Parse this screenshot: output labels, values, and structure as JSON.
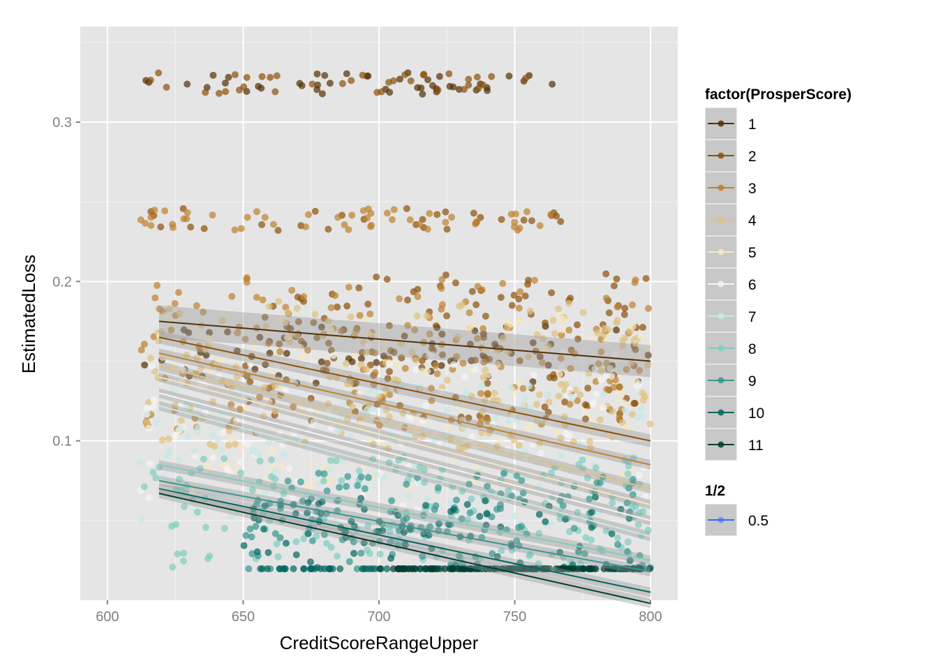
{
  "chart_data": {
    "type": "scatter",
    "xlabel": "CreditScoreRangeUpper",
    "ylabel": "EstimatedLoss",
    "xlim": [
      590,
      810
    ],
    "ylim": [
      0.0,
      0.36
    ],
    "x_ticks": [
      600,
      650,
      700,
      750,
      800
    ],
    "x_tick_labels": [
      "600",
      "650",
      "700",
      "750",
      "800"
    ],
    "y_ticks": [
      0.1,
      0.2,
      0.3
    ],
    "y_tick_labels": [
      "0.1",
      "0.2",
      "0.3"
    ],
    "grid": true,
    "legend_position": "right",
    "colors": {
      "panel_bg": "#e5e5e5",
      "grid_major": "#ffffff",
      "grid_minor": "#f2f2f2",
      "smooth_ribbon": "#999999",
      "legend_key_bg": "#c8c8c8"
    },
    "legends": [
      {
        "title": "factor(ProsperScore)",
        "entries": [
          {
            "label": "1",
            "color": "#543005"
          },
          {
            "label": "2",
            "color": "#8c510a"
          },
          {
            "label": "3",
            "color": "#bf812d"
          },
          {
            "label": "4",
            "color": "#dfc27d"
          },
          {
            "label": "5",
            "color": "#f6e8c3"
          },
          {
            "label": "6",
            "color": "#f5f5f5"
          },
          {
            "label": "7",
            "color": "#c7eae5"
          },
          {
            "label": "8",
            "color": "#80cdc1"
          },
          {
            "label": "9",
            "color": "#35978f"
          },
          {
            "label": "10",
            "color": "#01665e"
          },
          {
            "label": "11",
            "color": "#003c30"
          }
        ]
      },
      {
        "title": "1/2",
        "entries": [
          {
            "label": "0.5",
            "color": "#3366ff"
          }
        ]
      }
    ],
    "series": [
      {
        "name": "1",
        "color": "#543005",
        "trend": {
          "x": [
            619,
            800
          ],
          "y": [
            0.175,
            0.15
          ]
        },
        "ribbon": 0.01,
        "clusters": [
          {
            "x": [
              612,
              768
            ],
            "y": [
              0.3175,
              0.331
            ],
            "n": 44
          },
          {
            "x": [
              612,
              800
            ],
            "y": [
              0.136,
              0.172
            ],
            "n": 70
          }
        ]
      },
      {
        "name": "2",
        "color": "#8c510a",
        "trend": {
          "x": [
            619,
            800
          ],
          "y": [
            0.165,
            0.1
          ]
        },
        "ribbon": 0.004,
        "clusters": [
          {
            "x": [
              612,
              768
            ],
            "y": [
              0.3175,
              0.331
            ],
            "n": 36
          },
          {
            "x": [
              612,
              768
            ],
            "y": [
              0.232,
              0.246
            ],
            "n": 30
          },
          {
            "x": [
              650,
              800
            ],
            "y": [
              0.112,
              0.205
            ],
            "n": 150
          }
        ]
      },
      {
        "name": "3",
        "color": "#bf812d",
        "trend": {
          "x": [
            619,
            800
          ],
          "y": [
            0.155,
            0.085
          ]
        },
        "ribbon": 0.003,
        "clusters": [
          {
            "x": [
              612,
              768
            ],
            "y": [
              0.232,
              0.246
            ],
            "n": 50
          },
          {
            "x": [
              612,
              800
            ],
            "y": [
              0.105,
              0.205
            ],
            "n": 160
          }
        ]
      },
      {
        "name": "4",
        "color": "#dfc27d",
        "trend": {
          "x": [
            619,
            800
          ],
          "y": [
            0.147,
            0.07
          ]
        },
        "ribbon": 0.003,
        "clusters": [
          {
            "x": [
              612,
              800
            ],
            "y": [
              0.095,
              0.188
            ],
            "n": 180
          }
        ]
      },
      {
        "name": "5",
        "color": "#f6e8c3",
        "trend": {
          "x": [
            619,
            800
          ],
          "y": [
            0.14,
            0.06
          ]
        },
        "ribbon": 0.003,
        "clusters": [
          {
            "x": [
              612,
              800
            ],
            "y": [
              0.07,
              0.18
            ],
            "n": 160
          }
        ]
      },
      {
        "name": "6",
        "color": "#f5f5f5",
        "trend": {
          "x": [
            619,
            800
          ],
          "y": [
            0.13,
            0.05
          ]
        },
        "ribbon": 0.003,
        "clusters": [
          {
            "x": [
              612,
              800
            ],
            "y": [
              0.055,
              0.16
            ],
            "n": 120
          }
        ]
      },
      {
        "name": "7",
        "color": "#c7eae5",
        "trend": {
          "x": [
            619,
            800
          ],
          "y": [
            0.122,
            0.04
          ]
        },
        "ribbon": 0.003,
        "clusters": [
          {
            "x": [
              612,
              800
            ],
            "y": [
              0.045,
              0.135
            ],
            "n": 130
          }
        ]
      },
      {
        "name": "8",
        "color": "#80cdc1",
        "trend": {
          "x": [
            619,
            800
          ],
          "y": [
            0.085,
            0.025
          ]
        },
        "ribbon": 0.003,
        "clusters": [
          {
            "x": [
              612,
              800
            ],
            "y": [
              0.02,
              0.09
            ],
            "n": 170
          }
        ]
      },
      {
        "name": "9",
        "color": "#35978f",
        "trend": {
          "x": [
            619,
            800
          ],
          "y": [
            0.075,
            0.018
          ]
        },
        "ribbon": 0.003,
        "clusters": [
          {
            "x": [
              650,
              800
            ],
            "y": [
              0.01,
              0.08
            ],
            "n": 160
          }
        ]
      },
      {
        "name": "10",
        "color": "#01665e",
        "trend": {
          "x": [
            619,
            800
          ],
          "y": [
            0.07,
            0.005
          ]
        },
        "ribbon": 0.003,
        "clusters": [
          {
            "x": [
              650,
              800
            ],
            "y": [
              -0.025,
              0.065
            ],
            "n": 160
          }
        ]
      },
      {
        "name": "11",
        "color": "#003c30",
        "trend": {
          "x": [
            619,
            800
          ],
          "y": [
            0.067,
            -0.002
          ]
        },
        "ribbon": 0.003,
        "clusters": [
          {
            "x": [
              700,
              800
            ],
            "y": [
              -0.015,
              0.02
            ],
            "n": 90
          }
        ]
      }
    ]
  }
}
